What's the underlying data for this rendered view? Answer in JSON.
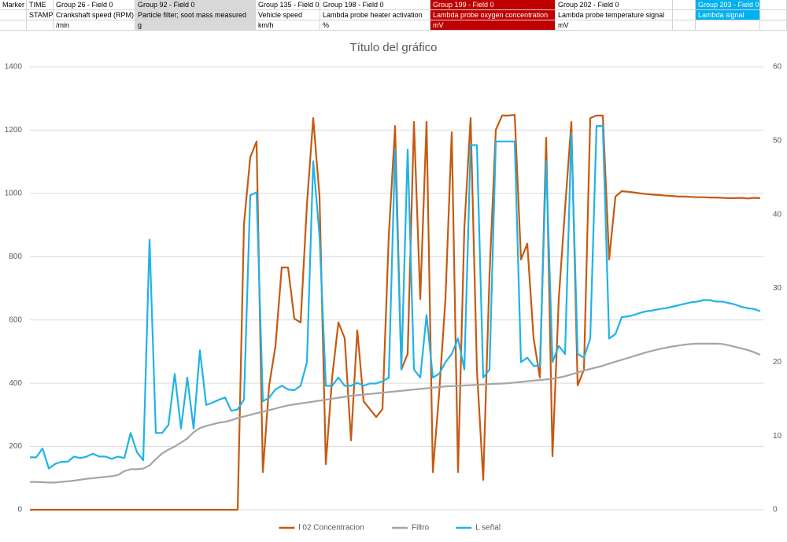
{
  "sheet": {
    "rows": [
      [
        "Marker",
        "TIME",
        "Group 26 - Field 0",
        "Group 92 - Field 0",
        "Group 135 - Field 0",
        "Group 198 - Field 0",
        "Group 199 - Field 0",
        "Group 202 - Field 0",
        null,
        "Group 203 - Field 0"
      ],
      [
        null,
        "STAMP",
        "Crankshaft speed (RPM)",
        "Particle filter; soot mass measured",
        "Vehicle speed",
        "Lambda probe heater activation",
        "Lambda probe oxygen concentration",
        "Lambda probe temperature signal",
        null,
        "Lambda signal"
      ],
      [
        null,
        null,
        "/min",
        "g",
        "km/h",
        "%",
        "mV",
        "mV",
        null,
        null
      ]
    ]
  },
  "chart_data": {
    "type": "line",
    "title": "Título del gráfico",
    "ylim": [
      0,
      1400
    ],
    "yticks": [
      0,
      200,
      400,
      600,
      800,
      1000,
      1200,
      1400
    ],
    "y2lim": [
      0,
      60
    ],
    "y2ticks": [
      0,
      10,
      20,
      30,
      40,
      50,
      60
    ],
    "grid": true,
    "legend": "bottom",
    "series": [
      {
        "name": "l 02 Concentracion",
        "color": "#c55a11",
        "values": [
          0,
          0,
          0,
          0,
          0,
          0,
          0,
          0,
          0,
          0,
          0,
          0,
          0,
          0,
          0,
          0,
          0,
          0,
          0,
          0,
          0,
          0,
          0,
          0,
          0,
          0,
          0,
          0,
          0,
          0,
          0,
          0,
          0,
          0,
          903,
          1114,
          1164,
          119,
          393,
          517,
          766,
          766,
          604,
          592,
          965,
          1238,
          990,
          144,
          418,
          592,
          542,
          219,
          567,
          343,
          318,
          293,
          318,
          865,
          1213,
          443,
          493,
          1226,
          666,
          1226,
          119,
          368,
          666,
          1193,
          119,
          890,
          1238,
          443,
          94,
          741,
          1201,
          1246,
          1246,
          1248,
          791,
          841,
          542,
          418,
          1176,
          169,
          666,
          952,
          1226,
          393,
          443,
          1238,
          1246,
          1246,
          791,
          990,
          1007,
          1005,
          1003,
          1000,
          998,
          996,
          995,
          993,
          992,
          990,
          990,
          989,
          988,
          988,
          987,
          987,
          986,
          985,
          985,
          986,
          984,
          986,
          985
        ]
      },
      {
        "name": "Filtro",
        "color": "#a5a5a5",
        "values": [
          88,
          88,
          87,
          86,
          86,
          88,
          90,
          92,
          95,
          98,
          100,
          102,
          104,
          106,
          110,
          122,
          128,
          128,
          130,
          140,
          160,
          178,
          190,
          200,
          212,
          225,
          245,
          258,
          265,
          270,
          275,
          278,
          283,
          290,
          295,
          300,
          305,
          310,
          315,
          320,
          325,
          330,
          333,
          336,
          339,
          342,
          345,
          348,
          351,
          354,
          357,
          360,
          362,
          364,
          366,
          368,
          370,
          372,
          374,
          376,
          378,
          380,
          382,
          384,
          386,
          388,
          390,
          391,
          392,
          393,
          394,
          395,
          396,
          397,
          398,
          399,
          400,
          402,
          404,
          406,
          408,
          410,
          412,
          414,
          418,
          422,
          428,
          434,
          440,
          445,
          450,
          455,
          462,
          468,
          474,
          480,
          486,
          492,
          498,
          503,
          508,
          512,
          516,
          519,
          522,
          524,
          525,
          525,
          525,
          525,
          524,
          520,
          515,
          510,
          505,
          498,
          490
        ]
      },
      {
        "name": "L señal",
        "color": "#1fb3e8",
        "axis": "y2",
        "values": [
          7.1,
          7.1,
          8.3,
          5.6,
          6.2,
          6.5,
          6.5,
          7.2,
          7.0,
          7.2,
          7.6,
          7.2,
          7.2,
          6.9,
          7.2,
          7.0,
          10.4,
          7.8,
          6.7,
          36.6,
          10.4,
          10.4,
          11.5,
          18.4,
          11.0,
          17.9,
          11.0,
          21.6,
          14.2,
          14.5,
          14.9,
          15.2,
          13.4,
          13.6,
          14.9,
          42.6,
          43.0,
          14.7,
          15.2,
          16.3,
          16.8,
          16.3,
          16.2,
          16.8,
          20.0,
          47.2,
          37.1,
          16.8,
          16.8,
          17.9,
          16.8,
          16.8,
          17.2,
          16.8,
          17.1,
          17.1,
          17.4,
          17.9,
          48.8,
          19.0,
          48.8,
          19.0,
          17.9,
          26.4,
          17.9,
          18.4,
          20.0,
          21.1,
          23.2,
          19.0,
          49.4,
          49.4,
          17.9,
          19.0,
          49.9,
          49.9,
          49.9,
          49.9,
          20.0,
          20.6,
          19.5,
          19.5,
          47.2,
          20.0,
          22.2,
          21.1,
          51.0,
          21.1,
          20.6,
          23.2,
          52.0,
          52.0,
          23.2,
          23.8,
          26.1,
          26.2,
          26.4,
          26.7,
          26.9,
          27.0,
          27.2,
          27.3,
          27.5,
          27.7,
          27.9,
          28.1,
          28.2,
          28.4,
          28.4,
          28.2,
          28.2,
          28.0,
          27.8,
          27.5,
          27.3,
          27.2,
          26.9
        ]
      }
    ]
  }
}
